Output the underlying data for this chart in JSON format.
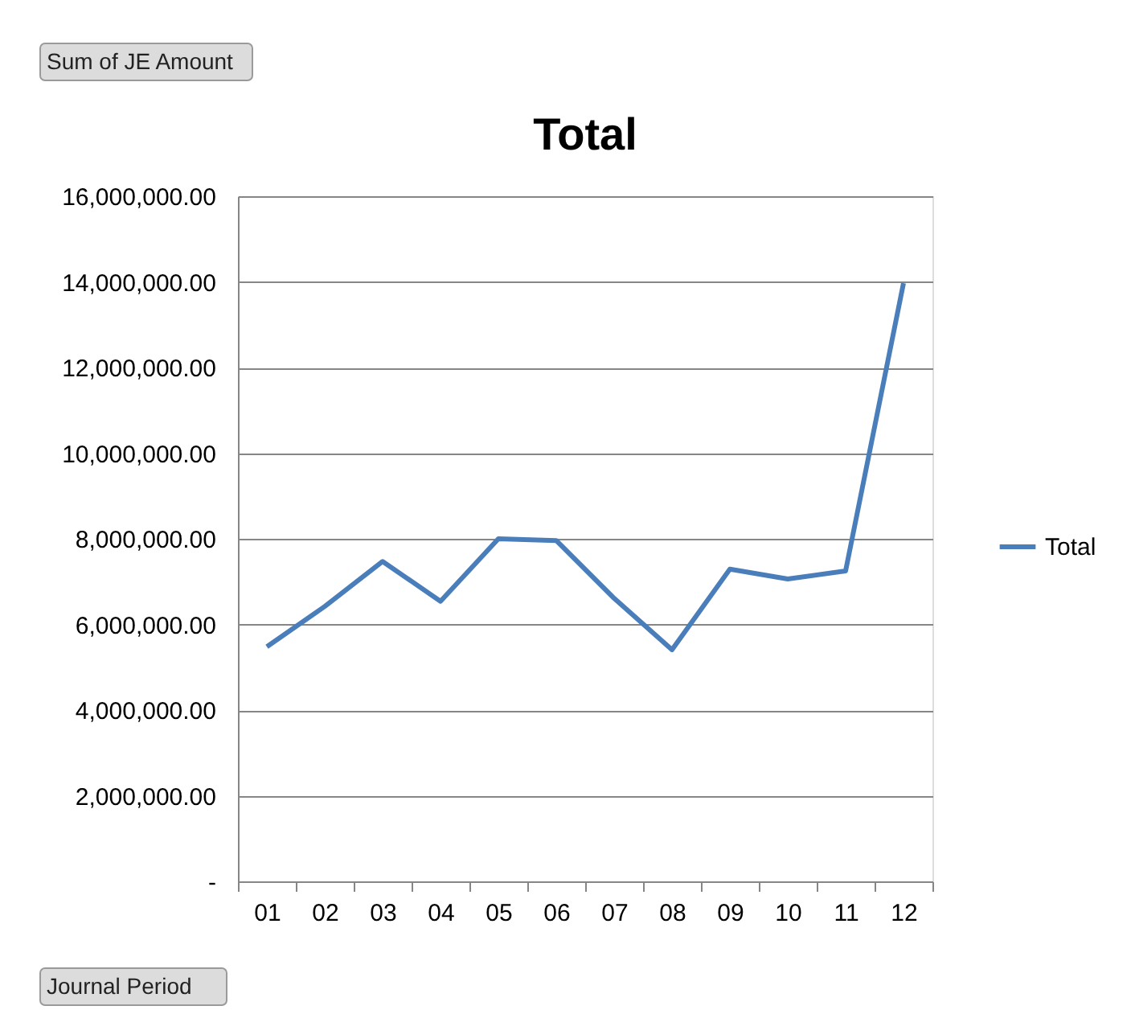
{
  "chart_data": {
    "type": "line",
    "title": "Total",
    "categories": [
      "01",
      "02",
      "03",
      "04",
      "05",
      "06",
      "07",
      "08",
      "09",
      "10",
      "11",
      "12"
    ],
    "series": [
      {
        "name": "Total",
        "color": "#4a7ebb",
        "values": [
          5480000,
          6420000,
          7470000,
          6540000,
          8000000,
          7960000,
          6610000,
          5410000,
          7290000,
          7060000,
          7250000,
          13970000
        ]
      }
    ],
    "ylim": [
      0,
      16000000
    ],
    "yticks": [
      {
        "value": 0,
        "label": "-"
      },
      {
        "value": 2000000,
        "label": "2,000,000.00"
      },
      {
        "value": 4000000,
        "label": "4,000,000.00"
      },
      {
        "value": 6000000,
        "label": "6,000,000.00"
      },
      {
        "value": 8000000,
        "label": "8,000,000.00"
      },
      {
        "value": 10000000,
        "label": "10,000,000.00"
      },
      {
        "value": 12000000,
        "label": "12,000,000.00"
      },
      {
        "value": 14000000,
        "label": "14,000,000.00"
      },
      {
        "value": 16000000,
        "label": "16,000,000.00"
      }
    ],
    "grid": "y",
    "legend": "right",
    "marker": "none",
    "line_style": "solid",
    "annotations": [
      "Sum of JE Amount",
      "Journal Period"
    ]
  }
}
